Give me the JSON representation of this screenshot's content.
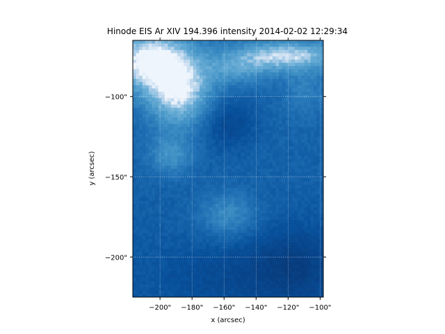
{
  "chart_data": {
    "type": "heatmap",
    "title": "Hinode EIS Ar XIV 194.396 intensity 2014-02-02 12:29:34",
    "xlabel": "x (arcsec)",
    "ylabel": "y (arcsec)",
    "xlim": [
      -217,
      -98
    ],
    "ylim": [
      -225,
      -65
    ],
    "x_ticks": [
      -200,
      -180,
      -160,
      -140,
      -120,
      -100
    ],
    "y_ticks": [
      -200,
      -150,
      -100
    ],
    "x_tick_labels": [
      "−200\"",
      "−180\"",
      "−160\"",
      "−140\"",
      "−120\"",
      "−100\""
    ],
    "y_tick_labels": [
      "−200\"",
      "−150\"",
      "−100\""
    ],
    "grid": true,
    "colormap": "Blues_r",
    "colors": {
      "dark": "#08306b",
      "mid": "#2171b5",
      "light": "#6baed6",
      "bright": "#deebf7"
    },
    "cells_x": 60,
    "cells_y": 80
  }
}
